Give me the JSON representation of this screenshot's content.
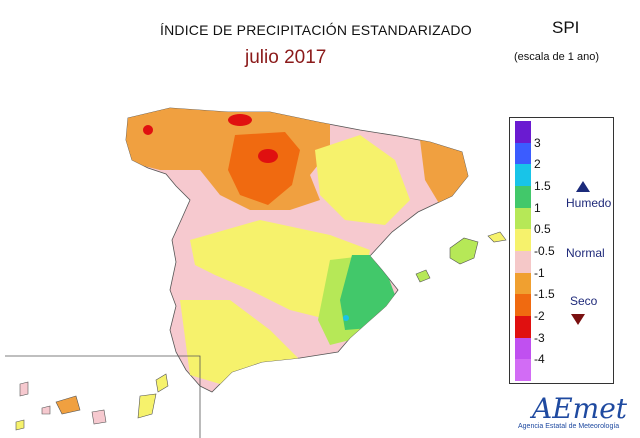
{
  "title": "ÍNDICE DE PRECIPITACIÓN ESTANDARIZADO",
  "subtitle": "julio 2017",
  "index_name": "SPI",
  "scale_note": "(escala de 1 ano)",
  "legend": {
    "levels": [
      {
        "label": "3",
        "color": "#6a1bd1"
      },
      {
        "label": "2",
        "color": "#3b5cff"
      },
      {
        "label": "1.5",
        "color": "#18c4e8"
      },
      {
        "label": "1",
        "color": "#42c86a"
      },
      {
        "label": "0.5",
        "color": "#b6e857"
      },
      {
        "label": "-0.5",
        "color": "#f6f26c"
      },
      {
        "label": "-1",
        "color": "#f5c8c8"
      },
      {
        "label": "-1.5",
        "color": "#f0a030"
      },
      {
        "label": "-2",
        "color": "#f06a10"
      },
      {
        "label": "-3",
        "color": "#e01010"
      },
      {
        "label": "-4",
        "color": "#c050f0"
      }
    ],
    "top_color": "#6a1bd1",
    "bottom_color": "#d26cf5",
    "categories": {
      "wet": "Humedo",
      "normal": "Normal",
      "dry": "Seco"
    }
  },
  "logo": {
    "text": "AEmet",
    "tagline": "Agencia Estatal de Meteorología"
  }
}
